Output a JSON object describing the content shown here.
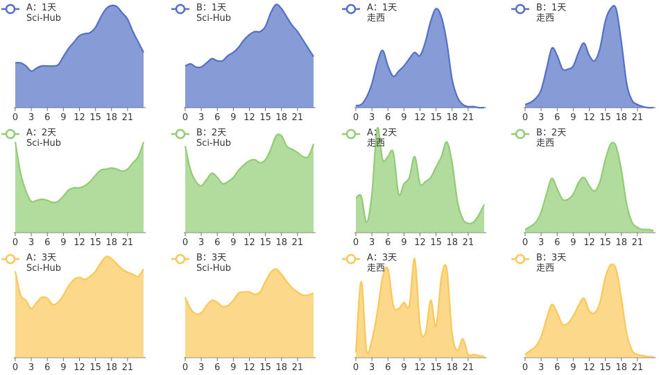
{
  "chart_data": [
    {
      "type": "area",
      "x": [
        0,
        1,
        2,
        3,
        4,
        5,
        6,
        7,
        8,
        9,
        10,
        11,
        12,
        13,
        14,
        15,
        16,
        17,
        18,
        19,
        20,
        21,
        22,
        23,
        24
      ],
      "xlim": [
        0,
        24
      ],
      "xticks": [
        0,
        3,
        6,
        9,
        12,
        15,
        18,
        21
      ],
      "ylim": [
        0,
        105
      ],
      "series": [
        {
          "name": "A：1天\nSci-Hub",
          "color": "#5470c6",
          "values": [
            43,
            43,
            40,
            35,
            38,
            40,
            40,
            40,
            41,
            49,
            57,
            63,
            69,
            71,
            72,
            77,
            87,
            95,
            98,
            97,
            91,
            85,
            73,
            63,
            53
          ]
        }
      ]
    },
    {
      "type": "area",
      "x": [
        0,
        1,
        2,
        3,
        4,
        5,
        6,
        7,
        8,
        9,
        10,
        11,
        12,
        13,
        14,
        15,
        16,
        17,
        18,
        19,
        20,
        21,
        22,
        23,
        24
      ],
      "xlim": [
        0,
        24
      ],
      "xticks": [
        0,
        3,
        6,
        9,
        12,
        15,
        18,
        21
      ],
      "ylim": [
        0,
        105
      ],
      "series": [
        {
          "name": "B：1天\nSci-Hub",
          "color": "#5470c6",
          "values": [
            40,
            42,
            39,
            39,
            43,
            47,
            45,
            45,
            50,
            53,
            58,
            65,
            70,
            73,
            73,
            78,
            91,
            99,
            95,
            87,
            79,
            73,
            65,
            57,
            49
          ]
        }
      ]
    },
    {
      "type": "area",
      "x": [
        0,
        1,
        2,
        3,
        4,
        5,
        6,
        7,
        8,
        9,
        10,
        11,
        12,
        13,
        14,
        15,
        16,
        17,
        18,
        19,
        20,
        21,
        22,
        23,
        24
      ],
      "xlim": [
        0,
        24
      ],
      "xticks": [
        0,
        3,
        6,
        9,
        12,
        15,
        18,
        21
      ],
      "ylim": [
        0,
        105
      ],
      "series": [
        {
          "name": "A：1天\n走西",
          "color": "#5470c6",
          "values": [
            2,
            3,
            10,
            23,
            43,
            55,
            40,
            30,
            35,
            40,
            47,
            53,
            50,
            63,
            83,
            95,
            87,
            63,
            27,
            10,
            3,
            1,
            1,
            0,
            0
          ]
        }
      ]
    },
    {
      "type": "area",
      "x": [
        0,
        1,
        2,
        3,
        4,
        5,
        6,
        7,
        8,
        9,
        10,
        11,
        12,
        13,
        14,
        15,
        16,
        17,
        18,
        19,
        20,
        21,
        22,
        23,
        24
      ],
      "xlim": [
        0,
        24
      ],
      "xticks": [
        0,
        3,
        6,
        9,
        12,
        15,
        18,
        21
      ],
      "ylim": [
        0,
        105
      ],
      "series": [
        {
          "name": "B：1天\n走西",
          "color": "#5470c6",
          "values": [
            3,
            5,
            9,
            17,
            37,
            57,
            50,
            37,
            37,
            40,
            53,
            62,
            50,
            45,
            57,
            83,
            95,
            95,
            63,
            23,
            7,
            3,
            1,
            0,
            0
          ]
        }
      ]
    },
    {
      "type": "area",
      "x": [
        0,
        1,
        2,
        3,
        4,
        5,
        6,
        7,
        8,
        9,
        10,
        11,
        12,
        13,
        14,
        15,
        16,
        17,
        18,
        19,
        20,
        21,
        22,
        23,
        24
      ],
      "xlim": [
        0,
        24
      ],
      "xticks": [
        0,
        3,
        6,
        9,
        12,
        15,
        18,
        21
      ],
      "ylim": [
        0,
        105
      ],
      "series": [
        {
          "name": "A：2天\nSci-Hub",
          "color": "#91cc75",
          "values": [
            87,
            57,
            40,
            30,
            31,
            32,
            31,
            29,
            30,
            35,
            41,
            43,
            43,
            45,
            49,
            55,
            60,
            61,
            62,
            61,
            59,
            61,
            67,
            73,
            87
          ]
        }
      ]
    },
    {
      "type": "area",
      "x": [
        0,
        1,
        2,
        3,
        4,
        5,
        6,
        7,
        8,
        9,
        10,
        11,
        12,
        13,
        14,
        15,
        16,
        17,
        18,
        19,
        20,
        21,
        22,
        23,
        24
      ],
      "xlim": [
        0,
        24
      ],
      "xticks": [
        0,
        3,
        6,
        9,
        12,
        15,
        18,
        21
      ],
      "ylim": [
        0,
        105
      ],
      "series": [
        {
          "name": "B：2天\nSci-Hub",
          "color": "#91cc75",
          "values": [
            83,
            60,
            49,
            45,
            51,
            57,
            53,
            47,
            49,
            53,
            60,
            65,
            69,
            70,
            67,
            70,
            80,
            93,
            93,
            83,
            80,
            77,
            73,
            73,
            85
          ]
        }
      ]
    },
    {
      "type": "area",
      "x": [
        0,
        1,
        2,
        3,
        4,
        5,
        6,
        7,
        8,
        9,
        10,
        11,
        12,
        13,
        14,
        15,
        16,
        17,
        18,
        19,
        20,
        21,
        22,
        23,
        24
      ],
      "xlim": [
        0,
        24
      ],
      "xticks": [
        0,
        3,
        6,
        9,
        12,
        15,
        18,
        21
      ],
      "ylim": [
        0,
        105
      ],
      "series": [
        {
          "name": "A：2天\n走西",
          "color": "#91cc75",
          "values": [
            33,
            35,
            10,
            37,
            100,
            70,
            73,
            77,
            37,
            47,
            53,
            73,
            47,
            49,
            53,
            63,
            73,
            87,
            67,
            30,
            13,
            9,
            10,
            17,
            27
          ]
        }
      ]
    },
    {
      "type": "area",
      "x": [
        0,
        1,
        2,
        3,
        4,
        5,
        6,
        7,
        8,
        9,
        10,
        11,
        12,
        13,
        14,
        15,
        16,
        17,
        18,
        19,
        20,
        21,
        22,
        23,
        24
      ],
      "xlim": [
        0,
        24
      ],
      "xticks": [
        0,
        3,
        6,
        9,
        12,
        15,
        18,
        21
      ],
      "ylim": [
        0,
        105
      ],
      "series": [
        {
          "name": "B：2天\n走西",
          "color": "#91cc75",
          "values": [
            3,
            6,
            10,
            20,
            37,
            52,
            42,
            32,
            32,
            37,
            48,
            53,
            45,
            40,
            49,
            70,
            85,
            83,
            60,
            27,
            10,
            5,
            3,
            3,
            2
          ]
        }
      ]
    },
    {
      "type": "area",
      "x": [
        0,
        1,
        2,
        3,
        4,
        5,
        6,
        7,
        8,
        9,
        10,
        11,
        12,
        13,
        14,
        15,
        16,
        17,
        18,
        19,
        20,
        21,
        22,
        23,
        24
      ],
      "xlim": [
        0,
        24
      ],
      "xticks": [
        0,
        3,
        6,
        9,
        12,
        15,
        18,
        21
      ],
      "ylim": [
        0,
        105
      ],
      "series": [
        {
          "name": "A：3天\nSci-Hub",
          "color": "#fac858",
          "values": [
            83,
            60,
            55,
            47,
            53,
            58,
            57,
            51,
            53,
            60,
            69,
            75,
            77,
            75,
            78,
            83,
            91,
            97,
            95,
            90,
            85,
            82,
            80,
            78,
            85
          ]
        }
      ]
    },
    {
      "type": "area",
      "x": [
        0,
        1,
        2,
        3,
        4,
        5,
        6,
        7,
        8,
        9,
        10,
        11,
        12,
        13,
        14,
        15,
        16,
        17,
        18,
        19,
        20,
        21,
        22,
        23,
        24
      ],
      "xlim": [
        0,
        24
      ],
      "xticks": [
        0,
        3,
        6,
        9,
        12,
        15,
        18,
        21
      ],
      "ylim": [
        0,
        105
      ],
      "series": [
        {
          "name": "B：3天\nSci-Hub",
          "color": "#fac858",
          "values": [
            58,
            47,
            42,
            43,
            50,
            55,
            53,
            49,
            50,
            55,
            62,
            63,
            63,
            61,
            63,
            73,
            82,
            85,
            80,
            73,
            67,
            63,
            60,
            60,
            62
          ]
        }
      ]
    },
    {
      "type": "area",
      "x": [
        0,
        1,
        2,
        3,
        4,
        5,
        6,
        7,
        8,
        9,
        10,
        11,
        12,
        13,
        14,
        15,
        16,
        17,
        18,
        19,
        20,
        21,
        22,
        23,
        24
      ],
      "xlim": [
        0,
        24
      ],
      "xticks": [
        0,
        3,
        6,
        9,
        12,
        15,
        18,
        21
      ],
      "ylim": [
        0,
        105
      ],
      "series": [
        {
          "name": "A：3天\n走西",
          "color": "#fac858",
          "values": [
            5,
            73,
            7,
            17,
            43,
            77,
            85,
            50,
            47,
            53,
            50,
            95,
            30,
            23,
            55,
            30,
            77,
            85,
            23,
            7,
            18,
            3,
            3,
            2,
            1
          ]
        }
      ]
    },
    {
      "type": "area",
      "x": [
        0,
        1,
        2,
        3,
        4,
        5,
        6,
        7,
        8,
        9,
        10,
        11,
        12,
        13,
        14,
        15,
        16,
        17,
        18,
        19,
        20,
        21,
        22,
        23,
        24
      ],
      "xlim": [
        0,
        24
      ],
      "xticks": [
        0,
        3,
        6,
        9,
        12,
        15,
        18,
        21
      ],
      "ylim": [
        0,
        105
      ],
      "series": [
        {
          "name": "B：3天\n走西",
          "color": "#fac858",
          "values": [
            3,
            7,
            11,
            20,
            37,
            51,
            43,
            32,
            33,
            40,
            50,
            57,
            45,
            43,
            53,
            77,
            89,
            85,
            57,
            23,
            7,
            3,
            2,
            1,
            1
          ]
        }
      ]
    }
  ]
}
